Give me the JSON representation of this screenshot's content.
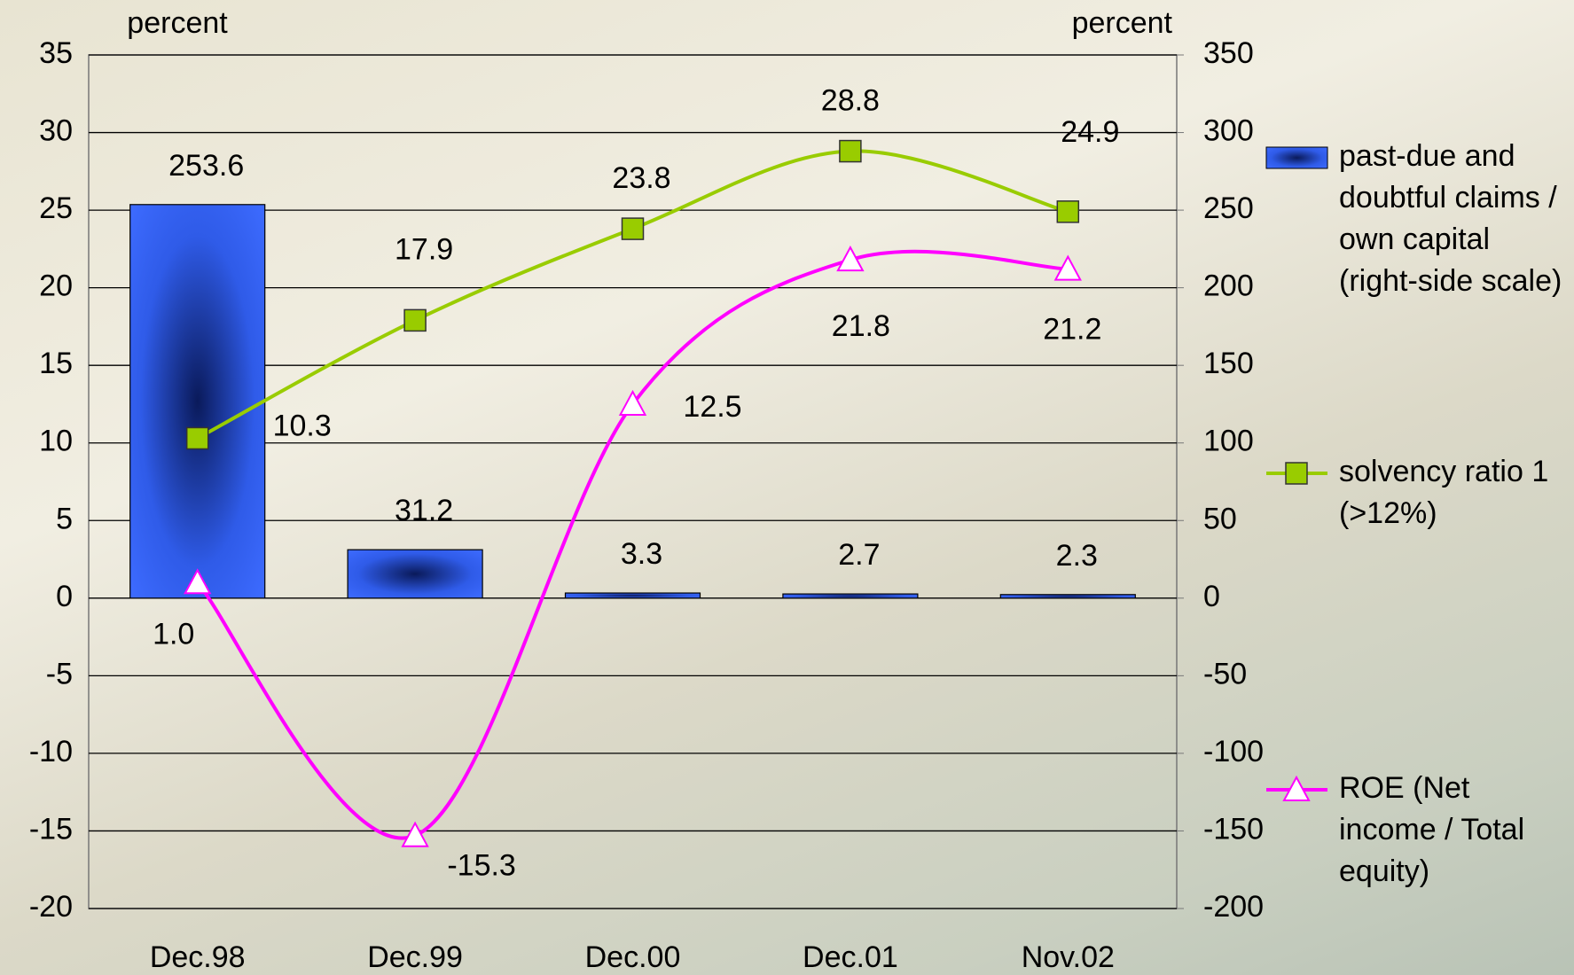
{
  "chart_data": {
    "type": "bar-line",
    "categories": [
      "Dec.98",
      "Dec.99",
      "Dec.00",
      "Dec.01",
      "Nov.02"
    ],
    "ylabel": "percent",
    "y2label": "percent",
    "ylim": [
      -20,
      35
    ],
    "yticks": [
      -20,
      -15,
      -10,
      -5,
      0,
      5,
      10,
      15,
      20,
      25,
      30,
      35
    ],
    "y2lim": [
      -200,
      350
    ],
    "y2ticks": [
      -200,
      -150,
      -100,
      -50,
      0,
      50,
      100,
      150,
      200,
      250,
      300,
      350
    ],
    "grid": true,
    "legend": "right",
    "series": [
      {
        "name": "past-due and doubtful claims / own capital (right-side scale)",
        "type": "bar",
        "axis": "y2",
        "color": "#3366ff",
        "values": [
          253.6,
          31.2,
          3.3,
          2.7,
          2.3
        ]
      },
      {
        "name": "solvency ratio 1 (>12%)",
        "type": "line",
        "marker": "square",
        "color": "#99cc00",
        "values": [
          10.3,
          17.9,
          23.8,
          28.8,
          24.9
        ]
      },
      {
        "name": "ROE (Net income / Total equity)",
        "type": "line",
        "marker": "triangle",
        "color": "#ff00ff",
        "values": [
          1.0,
          -15.3,
          12.5,
          21.8,
          21.2
        ],
        "value_labels": [
          "1.0",
          "-15.3",
          "12.5",
          "21.8",
          "21.2"
        ]
      }
    ]
  }
}
